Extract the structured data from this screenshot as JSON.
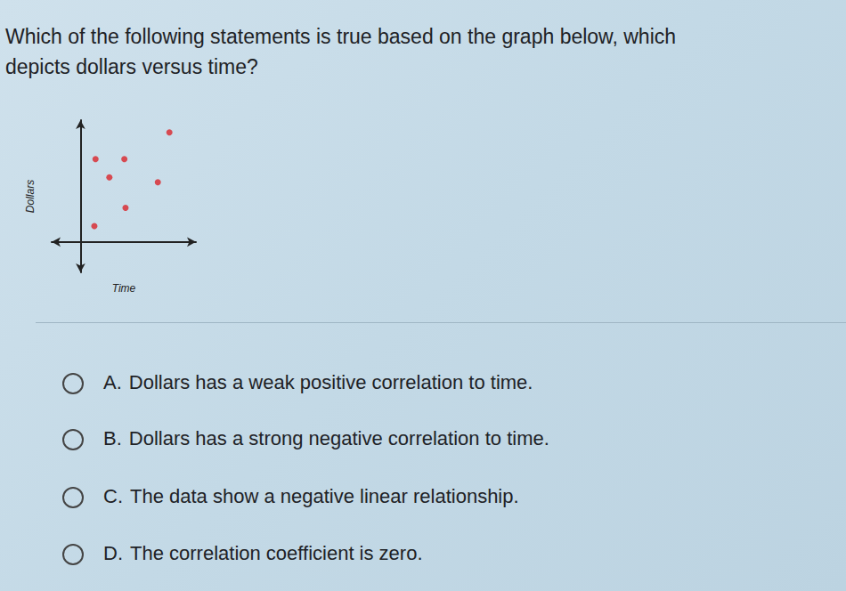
{
  "question": [
    "Which of the following statements is true based on the graph below, which",
    "depicts dollars versus time?"
  ],
  "chart_data": {
    "type": "scatter",
    "x_label": "Time",
    "y_label": "Dollars",
    "x": [
      7.7,
      1.3,
      3.8,
      2.5,
      6.7,
      3.9,
      1.2
    ],
    "values": [
      9.0,
      6.8,
      6.8,
      5.3,
      4.9,
      2.8,
      1.3
    ],
    "color": "#d9242b",
    "marker": "circle",
    "xlim": [
      -2.5,
      10
    ],
    "ylim": [
      -2.5,
      10
    ],
    "grid": false,
    "tick_labels": false
  },
  "options": [
    {
      "letter": "A.",
      "text": "Dollars has a weak positive correlation to time."
    },
    {
      "letter": "B.",
      "text": "Dollars has a strong negative correlation to time."
    },
    {
      "letter": "C.",
      "text": "The data show a negative linear relationship."
    },
    {
      "letter": "D.",
      "text": "The correlation coefficient is zero."
    }
  ]
}
